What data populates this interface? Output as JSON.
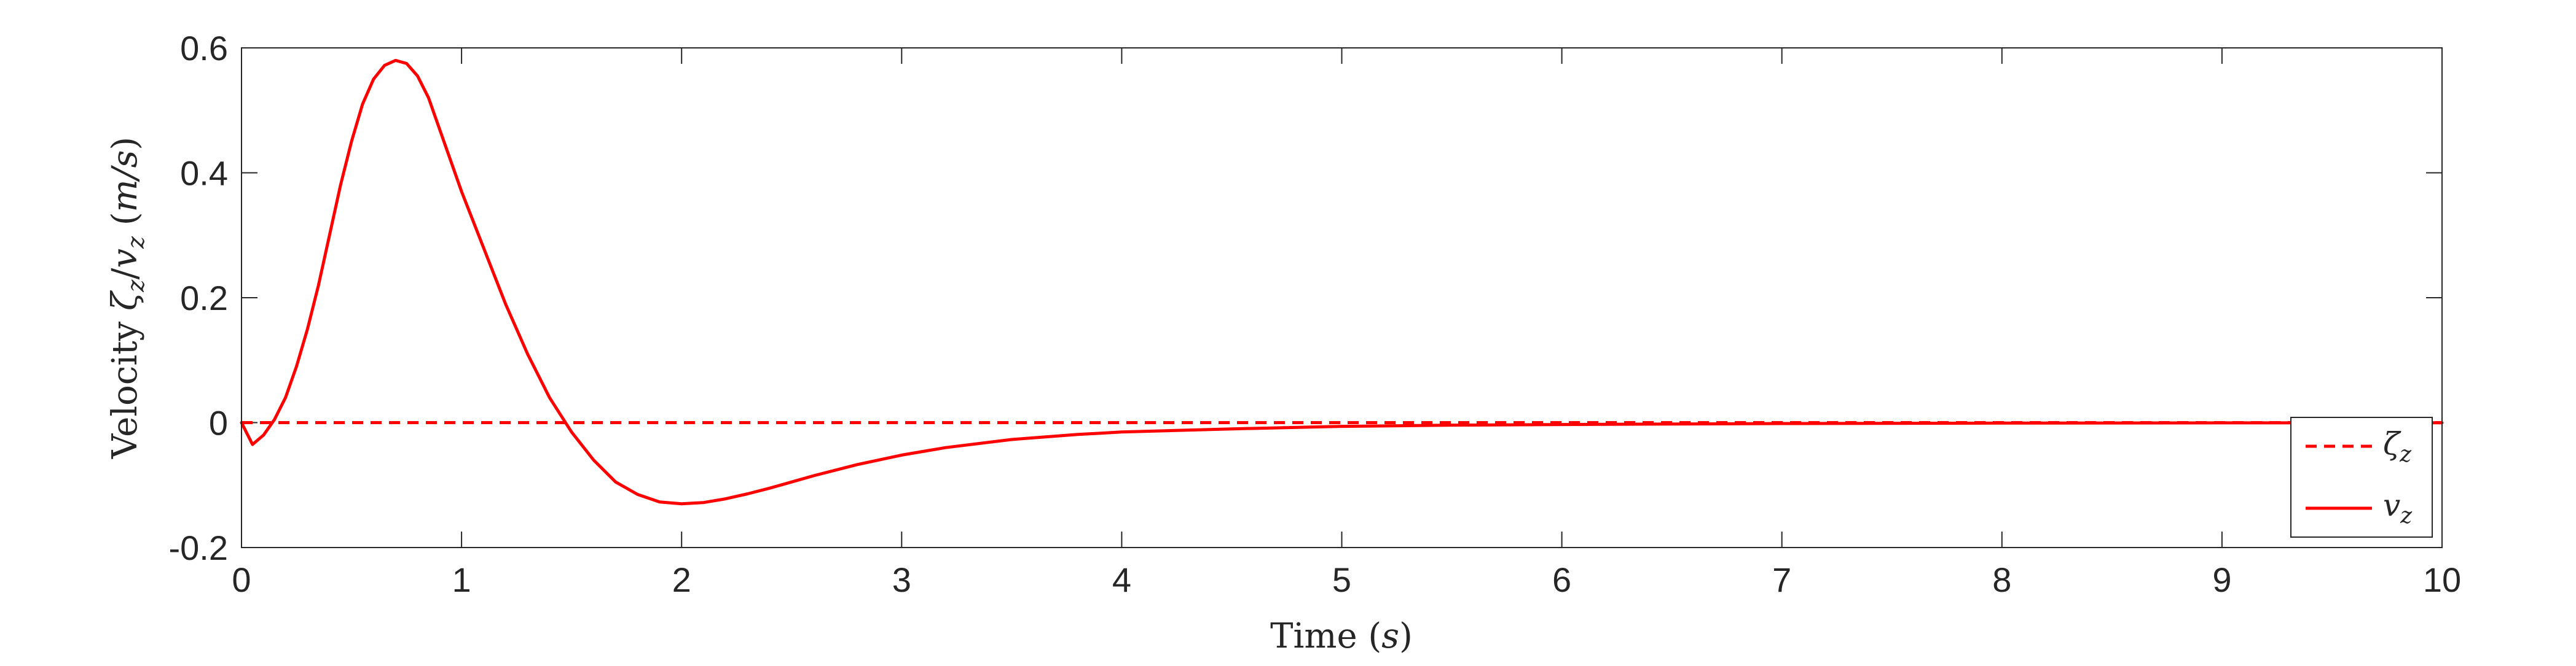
{
  "chart_data": {
    "type": "line",
    "title": "",
    "xlabel": {
      "text": "Time",
      "unit": "s"
    },
    "ylabel": {
      "text": "Velocity",
      "sym1": "ζ",
      "sym2": "v",
      "sub": "z",
      "unit": "m/s"
    },
    "xlim": [
      0,
      10
    ],
    "ylim": [
      -0.2,
      0.6
    ],
    "xticks": [
      0,
      1,
      2,
      3,
      4,
      5,
      6,
      7,
      8,
      9,
      10
    ],
    "xtick_labels": [
      "0",
      "1",
      "2",
      "3",
      "4",
      "5",
      "6",
      "7",
      "8",
      "9",
      "10"
    ],
    "yticks": [
      -0.2,
      0,
      0.2,
      0.4,
      0.6
    ],
    "ytick_labels": [
      "-0.2",
      "0",
      "0.2",
      "0.4",
      "0.6"
    ],
    "grid": false,
    "legend_position": "bottom-right",
    "series": [
      {
        "name": "ζ",
        "subscript": "z",
        "style": "dashed",
        "color": "#ff0000",
        "x": [
          0,
          10
        ],
        "y": [
          0,
          0
        ]
      },
      {
        "name": "v",
        "subscript": "z",
        "style": "solid",
        "color": "#ff0000",
        "x": [
          0,
          0.05,
          0.1,
          0.15,
          0.2,
          0.25,
          0.3,
          0.35,
          0.4,
          0.45,
          0.5,
          0.55,
          0.6,
          0.65,
          0.7,
          0.75,
          0.8,
          0.85,
          0.9,
          0.95,
          1.0,
          1.1,
          1.2,
          1.3,
          1.4,
          1.5,
          1.6,
          1.7,
          1.8,
          1.9,
          2.0,
          2.1,
          2.2,
          2.3,
          2.4,
          2.5,
          2.6,
          2.8,
          3.0,
          3.2,
          3.5,
          3.8,
          4.0,
          4.5,
          5.0,
          5.5,
          6.0,
          7.0,
          8.0,
          9.0,
          10.0
        ],
        "y": [
          0,
          -0.035,
          -0.02,
          0.005,
          0.04,
          0.09,
          0.15,
          0.22,
          0.3,
          0.38,
          0.45,
          0.51,
          0.55,
          0.572,
          0.58,
          0.575,
          0.555,
          0.52,
          0.47,
          0.42,
          0.37,
          0.28,
          0.19,
          0.11,
          0.04,
          -0.015,
          -0.06,
          -0.095,
          -0.115,
          -0.127,
          -0.13,
          -0.128,
          -0.122,
          -0.114,
          -0.105,
          -0.095,
          -0.085,
          -0.067,
          -0.052,
          -0.04,
          -0.027,
          -0.019,
          -0.015,
          -0.01,
          -0.006,
          -0.004,
          -0.003,
          -0.0015,
          -0.0008,
          -0.0004,
          -0.0002
        ]
      }
    ]
  }
}
